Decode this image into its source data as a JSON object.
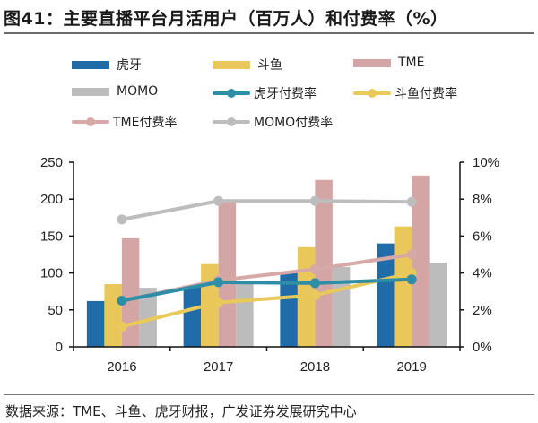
{
  "title": "图41：主要直播平台月活用户（百万人）和付费率（%）",
  "source": "数据来源：TME、斗鱼、虎牙财报，广发证券发展研究中心",
  "colors": {
    "huya": "#1f6ca8",
    "douyu": "#e9c75b",
    "tme": "#d4a5a5",
    "momo": "#bcbcbc",
    "huya_rate": "#2e8ea8",
    "douyu_rate": "#e8c95a",
    "tme_rate": "#d7a8a8",
    "momo_rate": "#bdbdbd"
  },
  "legend": [
    {
      "label": "虎牙",
      "kind": "bar",
      "color_key": "huya"
    },
    {
      "label": "斗鱼",
      "kind": "bar",
      "color_key": "douyu"
    },
    {
      "label": "TME",
      "kind": "bar",
      "color_key": "tme"
    },
    {
      "label": "MOMO",
      "kind": "bar",
      "color_key": "momo"
    },
    {
      "label": "虎牙付费率",
      "kind": "line",
      "color_key": "huya_rate"
    },
    {
      "label": "斗鱼付费率",
      "kind": "line",
      "color_key": "douyu_rate"
    },
    {
      "label": "TME付费率",
      "kind": "line",
      "color_key": "tme_rate"
    },
    {
      "label": "MOMO付费率",
      "kind": "line",
      "color_key": "momo_rate"
    }
  ],
  "chart_data": {
    "type": "bar",
    "title": "主要直播平台月活用户（百万人）和付费率（%）",
    "categories": [
      "2016",
      "2017",
      "2018",
      "2019"
    ],
    "xlabel": "",
    "ylabel": "月活用户（百万人）",
    "ylim": [
      0,
      250
    ],
    "yticks": [
      0,
      50,
      100,
      150,
      200,
      250
    ],
    "y2label": "付费率（%）",
    "y2lim": [
      0,
      10
    ],
    "y2ticks": [
      "0%",
      "2%",
      "4%",
      "6%",
      "8%",
      "10%"
    ],
    "y2tick_values": [
      0,
      2,
      4,
      6,
      8,
      10
    ],
    "grid": false,
    "legend_position": "top",
    "series": [
      {
        "name": "虎牙",
        "type": "bar",
        "axis": "left",
        "color_key": "huya",
        "values": [
          62,
          83,
          100,
          140
        ]
      },
      {
        "name": "斗鱼",
        "type": "bar",
        "axis": "left",
        "color_key": "douyu",
        "values": [
          85,
          112,
          135,
          163
        ]
      },
      {
        "name": "TME",
        "type": "bar",
        "axis": "left",
        "color_key": "tme",
        "values": [
          147,
          197,
          226,
          232
        ]
      },
      {
        "name": "MOMO",
        "type": "bar",
        "axis": "left",
        "color_key": "momo",
        "values": [
          80,
          85,
          108,
          114
        ]
      },
      {
        "name": "虎牙付费率",
        "type": "line",
        "axis": "right",
        "color_key": "huya_rate",
        "values": [
          2.5,
          3.5,
          3.45,
          3.65
        ]
      },
      {
        "name": "斗鱼付费率",
        "type": "line",
        "axis": "right",
        "color_key": "douyu_rate",
        "values": [
          1.1,
          2.4,
          2.8,
          4.0
        ]
      },
      {
        "name": "TME付费率",
        "type": "line",
        "axis": "right",
        "color_key": "tme_rate",
        "values": [
          2.5,
          3.6,
          4.2,
          5.0
        ]
      },
      {
        "name": "MOMO付费率",
        "type": "line",
        "axis": "right",
        "color_key": "momo_rate",
        "values": [
          6.9,
          7.9,
          7.9,
          7.85
        ]
      }
    ]
  }
}
